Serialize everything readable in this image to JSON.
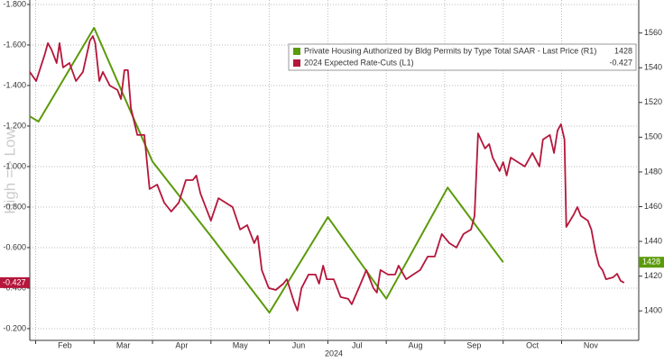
{
  "chart_data": {
    "type": "line",
    "y_axis_label": "High => Low",
    "x_axis_label": "2024",
    "xlim": [
      1.9,
      12.32
    ],
    "xticks": [
      {
        "value": 2.5,
        "label": "Feb"
      },
      {
        "value": 3.5,
        "label": "Mar"
      },
      {
        "value": 4.5,
        "label": "Apr"
      },
      {
        "value": 5.5,
        "label": "May"
      },
      {
        "value": 6.5,
        "label": "Jun"
      },
      {
        "value": 7.5,
        "label": "Jul"
      },
      {
        "value": 8.5,
        "label": "Aug"
      },
      {
        "value": 9.5,
        "label": "Sep"
      },
      {
        "value": 10.5,
        "label": "Oct"
      },
      {
        "value": 11.5,
        "label": "Nov"
      }
    ],
    "ylim": [
      -1.822,
      -0.142
    ],
    "y_inverted": true,
    "yticks": [
      {
        "value": -1.8,
        "label": "-1.800"
      },
      {
        "value": -1.6,
        "label": "-1.600"
      },
      {
        "value": -1.4,
        "label": "-1.400"
      },
      {
        "value": -1.2,
        "label": "-1.200"
      },
      {
        "value": -1.0,
        "label": "-1.000"
      },
      {
        "value": -0.8,
        "label": "-0.800"
      },
      {
        "value": -0.6,
        "label": "-0.600"
      },
      {
        "value": -0.4,
        "label": "-0.400"
      },
      {
        "value": -0.2,
        "label": "-0.200"
      }
    ],
    "y2lim": [
      1383,
      1579
    ],
    "y2ticks": [
      1400,
      1420,
      1440,
      1460,
      1480,
      1500,
      1520,
      1540,
      1560
    ],
    "grid": true,
    "legend": "top-right",
    "series": [
      {
        "name": "Private Housing Authorized by Bldg Permits by Type Total SAAR - Last Price (R1)",
        "color": "#5b9a0a",
        "axis": "y2",
        "x": [
          1.9,
          2.05,
          3.0,
          4.0,
          5.0,
          6.0,
          7.0,
          8.0,
          9.05,
          10.0
        ],
        "values": [
          1512,
          1509,
          1563,
          1486,
          1443,
          1399,
          1454,
          1407,
          1471,
          1428
        ]
      },
      {
        "name": "2024 Expected Rate-Cuts (L1)",
        "color": "#b5163b",
        "axis": "y",
        "x": [
          1.9,
          2.01,
          2.16,
          2.21,
          2.27,
          2.36,
          2.41,
          2.47,
          2.58,
          2.69,
          2.81,
          2.93,
          2.98,
          3.02,
          3.09,
          3.15,
          3.27,
          3.4,
          3.46,
          3.52,
          3.58,
          3.63,
          3.74,
          3.86,
          3.95,
          4.08,
          4.2,
          4.32,
          4.45,
          4.57,
          4.69,
          4.75,
          4.82,
          4.94,
          5.0,
          5.13,
          5.25,
          5.37,
          5.5,
          5.62,
          5.74,
          5.8,
          5.87,
          5.99,
          6.11,
          6.24,
          6.3,
          6.42,
          6.48,
          6.55,
          6.67,
          6.79,
          6.85,
          6.92,
          6.98,
          7.1,
          7.22,
          7.35,
          7.41,
          7.53,
          7.66,
          7.78,
          7.84,
          7.9,
          8.03,
          8.15,
          8.21,
          8.34,
          8.46,
          8.58,
          8.71,
          8.83,
          8.95,
          9.08,
          9.2,
          9.32,
          9.45,
          9.51,
          9.57,
          9.69,
          9.76,
          9.82,
          9.94,
          10.0,
          10.06,
          10.13,
          10.25,
          10.37,
          10.5,
          10.62,
          10.68,
          10.8,
          10.87,
          10.93,
          10.99,
          11.05,
          11.08,
          11.21,
          11.27,
          11.33,
          11.45,
          11.51,
          11.58,
          11.64,
          11.7,
          11.76,
          11.88,
          11.95,
          12.01,
          12.07
        ],
        "values": [
          -1.467,
          -1.422,
          -1.556,
          -1.609,
          -1.578,
          -1.511,
          -1.609,
          -1.489,
          -1.511,
          -1.422,
          -1.467,
          -1.622,
          -1.644,
          -1.609,
          -1.422,
          -1.467,
          -1.4,
          -1.378,
          -1.333,
          -1.476,
          -1.476,
          -1.289,
          -1.156,
          -1.156,
          -0.889,
          -0.911,
          -0.822,
          -0.778,
          -0.822,
          -0.933,
          -0.933,
          -0.956,
          -0.867,
          -0.778,
          -0.733,
          -0.844,
          -0.822,
          -0.8,
          -0.689,
          -0.711,
          -0.622,
          -0.658,
          -0.489,
          -0.4,
          -0.391,
          -0.422,
          -0.444,
          -0.333,
          -0.289,
          -0.4,
          -0.467,
          -0.467,
          -0.422,
          -0.511,
          -0.444,
          -0.444,
          -0.356,
          -0.347,
          -0.32,
          -0.4,
          -0.489,
          -0.4,
          -0.378,
          -0.489,
          -0.467,
          -0.467,
          -0.511,
          -0.444,
          -0.467,
          -0.489,
          -0.556,
          -0.556,
          -0.667,
          -0.622,
          -0.6,
          -0.667,
          -0.689,
          -0.756,
          -1.164,
          -1.089,
          -1.111,
          -1.044,
          -0.978,
          -1.022,
          -0.956,
          -1.044,
          -1.022,
          -1.0,
          -1.067,
          -1.0,
          -1.133,
          -1.156,
          -1.067,
          -1.178,
          -1.209,
          -1.133,
          -0.702,
          -0.764,
          -0.8,
          -0.756,
          -0.733,
          -0.689,
          -0.578,
          -0.511,
          -0.489,
          -0.444,
          -0.453,
          -0.471,
          -0.436,
          -0.427
        ]
      }
    ]
  }
}
